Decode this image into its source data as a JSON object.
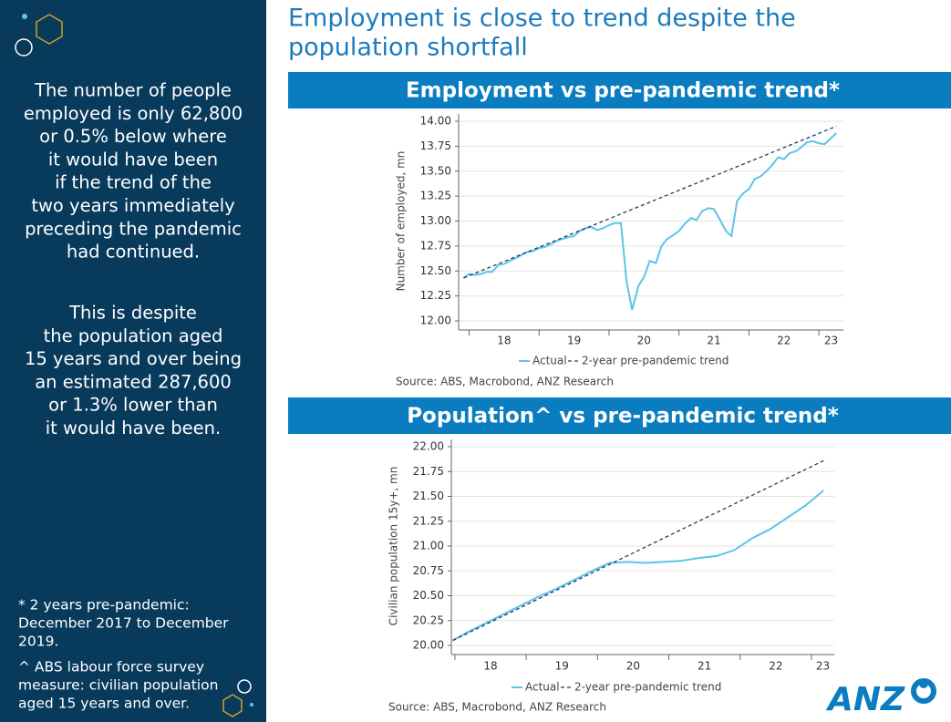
{
  "title_lines": [
    "Employment is close to trend despite the",
    "population shortfall"
  ],
  "sidebar": {
    "paragraphs": [
      [
        "The number of people",
        "employed is only 62,800",
        "or 0.5% below where",
        "it would have been",
        "if the trend of the",
        "two years immediately",
        "preceding the pandemic",
        "had continued."
      ],
      [
        "This is despite",
        "the population aged",
        "15 years and over being",
        "an estimated 287,600",
        "or 1.3% lower than",
        "it would have been."
      ]
    ],
    "footnotes": [
      [
        "* 2 years pre-pandemic:",
        "December 2017 to December",
        "2019."
      ],
      [
        "^ ABS labour force survey",
        "measure: civilian population",
        "aged 15 years and over."
      ]
    ]
  },
  "logo": "ANZ",
  "chart_data": [
    {
      "type": "line",
      "title": "Employment vs pre-pandemic trend*",
      "y_label": "Number of employed, mn",
      "source": "Source: ABS, Macrobond, ANZ Research",
      "xlim": [
        2017.85,
        2023.35
      ],
      "xticks": [
        {
          "value": 2018,
          "label": "18"
        },
        {
          "value": 2019,
          "label": "19"
        },
        {
          "value": 2020,
          "label": "20"
        },
        {
          "value": 2021,
          "label": "21"
        },
        {
          "value": 2022,
          "label": "22"
        },
        {
          "value": 2023,
          "label": "23"
        }
      ],
      "ylim": [
        12.0,
        14.0
      ],
      "yticks": [
        {
          "value": 12,
          "label": "12.00"
        },
        {
          "value": 12.25,
          "label": "12.25"
        },
        {
          "value": 12.5,
          "label": "12.50"
        },
        {
          "value": 12.75,
          "label": "12.75"
        },
        {
          "value": 13,
          "label": "13.00"
        },
        {
          "value": 13.25,
          "label": "13.25"
        },
        {
          "value": 13.5,
          "label": "13.50"
        },
        {
          "value": 13.75,
          "label": "13.75"
        },
        {
          "value": 14,
          "label": "14.00"
        }
      ],
      "grid": true,
      "series": [
        {
          "name": "Actual",
          "color": "#5bc5e8",
          "dashed": false,
          "x": [
            2017.92,
            2018.0,
            2018.08,
            2018.17,
            2018.25,
            2018.33,
            2018.42,
            2018.5,
            2018.58,
            2018.67,
            2018.75,
            2018.83,
            2018.92,
            2019.0,
            2019.08,
            2019.17,
            2019.25,
            2019.33,
            2019.42,
            2019.5,
            2019.58,
            2019.67,
            2019.75,
            2019.83,
            2019.92,
            2020.0,
            2020.08,
            2020.17,
            2020.25,
            2020.33,
            2020.42,
            2020.5,
            2020.58,
            2020.67,
            2020.75,
            2020.83,
            2020.92,
            2021.0,
            2021.08,
            2021.17,
            2021.25,
            2021.33,
            2021.42,
            2021.5,
            2021.58,
            2021.67,
            2021.75,
            2021.83,
            2021.92,
            2022.0,
            2022.08,
            2022.17,
            2022.25,
            2022.33,
            2022.42,
            2022.5,
            2022.58,
            2022.67,
            2022.75,
            2022.83,
            2022.92,
            2023.0,
            2023.08,
            2023.17,
            2023.25
          ],
          "values": [
            12.43,
            12.47,
            12.46,
            12.47,
            12.49,
            12.49,
            12.56,
            12.57,
            12.6,
            12.63,
            12.66,
            12.69,
            12.7,
            12.73,
            12.74,
            12.77,
            12.8,
            12.82,
            12.84,
            12.85,
            12.9,
            12.93,
            12.94,
            12.91,
            12.93,
            12.96,
            12.98,
            12.98,
            12.4,
            12.11,
            12.35,
            12.44,
            12.6,
            12.58,
            12.75,
            12.82,
            12.86,
            12.9,
            12.97,
            13.03,
            13.01,
            13.1,
            13.13,
            13.12,
            13.02,
            12.9,
            12.85,
            13.2,
            13.28,
            13.32,
            13.42,
            13.45,
            13.5,
            13.56,
            13.64,
            13.62,
            13.68,
            13.7,
            13.74,
            13.79,
            13.8,
            13.78,
            13.77,
            13.83,
            13.88
          ]
        },
        {
          "name": "2-year pre-pandemic trend",
          "color": "#1f3f66",
          "dashed": true,
          "x": [
            2017.92,
            2023.25
          ],
          "values": [
            12.43,
            13.95
          ]
        }
      ]
    },
    {
      "type": "line",
      "title": "Population^ vs pre-pandemic trend*",
      "y_label": "Civilian population 15y+, mn",
      "source": "Source: ABS, Macrobond, ANZ Research",
      "xlim": [
        2017.95,
        2023.32
      ],
      "xticks": [
        {
          "value": 2018,
          "label": "18"
        },
        {
          "value": 2019,
          "label": "19"
        },
        {
          "value": 2020,
          "label": "20"
        },
        {
          "value": 2021,
          "label": "21"
        },
        {
          "value": 2022,
          "label": "22"
        },
        {
          "value": 2023,
          "label": "23"
        }
      ],
      "ylim": [
        20.0,
        22.0
      ],
      "yticks": [
        {
          "value": 20,
          "label": "20.00"
        },
        {
          "value": 20.25,
          "label": "20.25"
        },
        {
          "value": 20.5,
          "label": "20.50"
        },
        {
          "value": 20.75,
          "label": "20.75"
        },
        {
          "value": 21,
          "label": "21.00"
        },
        {
          "value": 21.25,
          "label": "21.25"
        },
        {
          "value": 21.5,
          "label": "21.50"
        },
        {
          "value": 21.75,
          "label": "21.75"
        },
        {
          "value": 22,
          "label": "22.00"
        }
      ],
      "grid": true,
      "series": [
        {
          "name": "Actual",
          "color": "#5bc5e8",
          "dashed": false,
          "x": [
            2017.97,
            2018.17,
            2018.42,
            2018.67,
            2018.92,
            2019.17,
            2019.42,
            2019.67,
            2019.92,
            2020.17,
            2020.42,
            2020.67,
            2020.92,
            2021.17,
            2021.42,
            2021.67,
            2021.92,
            2022.17,
            2022.42,
            2022.67,
            2022.92,
            2023.17
          ],
          "values": [
            20.05,
            20.13,
            20.22,
            20.31,
            20.4,
            20.49,
            20.57,
            20.66,
            20.75,
            20.83,
            20.84,
            20.83,
            20.84,
            20.85,
            20.88,
            20.9,
            20.96,
            21.08,
            21.17,
            21.29,
            21.41,
            21.56
          ]
        },
        {
          "name": "2-year pre-pandemic trend",
          "color": "#1f3f66",
          "dashed": true,
          "x": [
            2017.97,
            2023.17
          ],
          "values": [
            20.05,
            21.86
          ]
        }
      ]
    }
  ]
}
